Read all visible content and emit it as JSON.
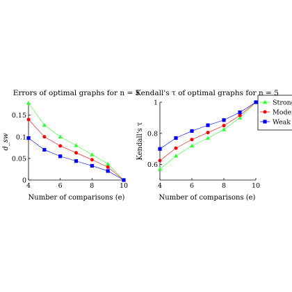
{
  "chart_data": [
    {
      "type": "line",
      "title": "Errors of optimal graphs for n = 5",
      "xlabel": "Number of comparisons (e)",
      "ylabel": "d_sw",
      "xlim": [
        4,
        10
      ],
      "ylim": [
        0,
        0.18
      ],
      "xticks": [
        4,
        6,
        8,
        10
      ],
      "yticks": [
        0,
        0.05,
        0.1,
        0.15
      ],
      "ytick_labels": [
        "0",
        "0.05",
        "0.1",
        "0.15"
      ],
      "x": [
        4,
        5,
        6,
        7,
        8,
        9,
        10
      ],
      "series": [
        {
          "name": "Strong",
          "color": "#33ff33",
          "marker": "triangle",
          "values": [
            0.178,
            0.127,
            0.1,
            0.08,
            0.059,
            0.037,
            0.0
          ]
        },
        {
          "name": "Moderate",
          "color": "#ff0000",
          "marker": "circle",
          "values": [
            0.14,
            0.1,
            0.079,
            0.063,
            0.047,
            0.03,
            0.0
          ]
        },
        {
          "name": "Weak",
          "color": "#0000ff",
          "marker": "square",
          "values": [
            0.097,
            0.07,
            0.055,
            0.044,
            0.033,
            0.021,
            0.0
          ]
        }
      ]
    },
    {
      "type": "line",
      "title": "Kendall's τ of optimal graphs for n = 5",
      "xlabel": "Number of comparisons (e)",
      "ylabel": "Kendall's τ",
      "xlim": [
        4,
        10
      ],
      "ylim": [
        0.5,
        1.0
      ],
      "xticks": [
        4,
        6,
        8,
        10
      ],
      "yticks": [
        0.6,
        0.8,
        1.0
      ],
      "ytick_labels": [
        "0.6",
        "0.8",
        "1"
      ],
      "x": [
        4,
        5,
        6,
        7,
        8,
        9,
        10
      ],
      "legend_position": "outside-right",
      "series": [
        {
          "name": "Strong",
          "color": "#33ff33",
          "marker": "triangle",
          "values": [
            0.57,
            0.655,
            0.72,
            0.77,
            0.825,
            0.9,
            1.0
          ]
        },
        {
          "name": "Moderate",
          "color": "#ff0000",
          "marker": "circle",
          "values": [
            0.625,
            0.705,
            0.76,
            0.805,
            0.85,
            0.915,
            1.0
          ]
        },
        {
          "name": "Weak",
          "color": "#0000ff",
          "marker": "square",
          "values": [
            0.7,
            0.77,
            0.815,
            0.852,
            0.885,
            0.935,
            1.0
          ]
        }
      ]
    }
  ]
}
